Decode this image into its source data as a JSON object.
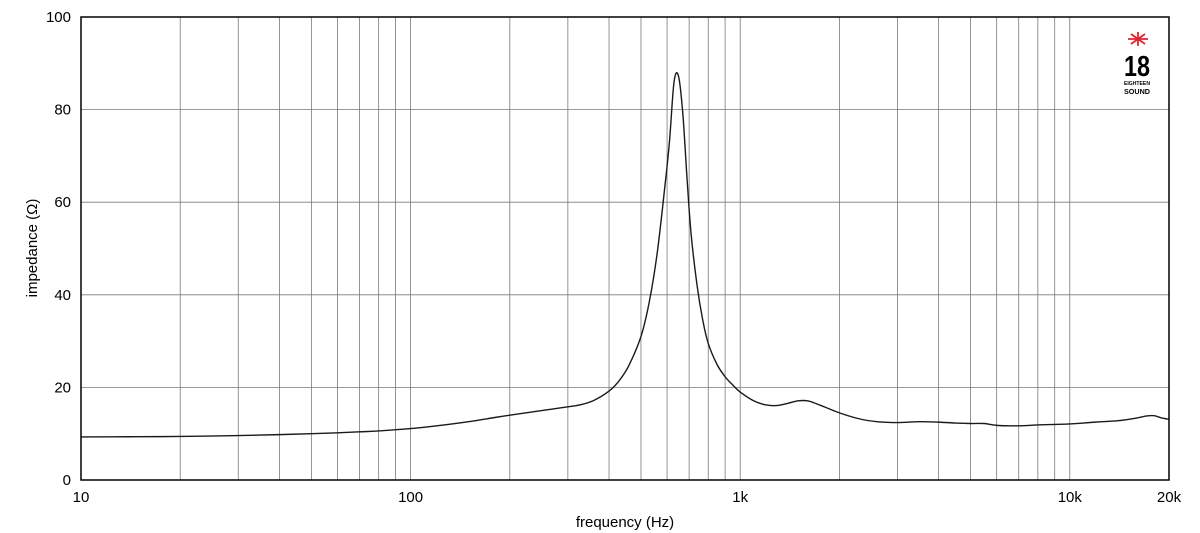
{
  "chart_data": {
    "type": "line",
    "xscale": "log",
    "xlim": [
      10,
      20000
    ],
    "ylim": [
      0,
      100
    ],
    "xlabel": "frequency (Hz)",
    "ylabel": "impedance (Ω)",
    "grid": true,
    "x_tick_labels": [
      {
        "value": 10,
        "label": "10"
      },
      {
        "value": 100,
        "label": "100"
      },
      {
        "value": 1000,
        "label": "1k"
      },
      {
        "value": 10000,
        "label": "10k"
      },
      {
        "value": 20000,
        "label": "20k"
      }
    ],
    "y_tick_labels": [
      {
        "value": 0,
        "label": "0"
      },
      {
        "value": 20,
        "label": "20"
      },
      {
        "value": 40,
        "label": "40"
      },
      {
        "value": 60,
        "label": "60"
      },
      {
        "value": 80,
        "label": "80"
      },
      {
        "value": 100,
        "label": "100"
      }
    ],
    "x_gridlines": [
      20,
      30,
      40,
      50,
      60,
      70,
      80,
      90,
      100,
      200,
      300,
      400,
      500,
      600,
      700,
      800,
      900,
      1000,
      2000,
      3000,
      4000,
      5000,
      6000,
      7000,
      8000,
      9000,
      10000
    ],
    "y_gridlines": [
      20,
      40,
      60,
      80
    ],
    "series": [
      {
        "color": "#1a1a1a",
        "x": [
          10,
          15,
          20,
          30,
          40,
          50,
          60,
          70,
          80,
          100,
          120,
          150,
          180,
          200,
          250,
          300,
          330,
          360,
          400,
          430,
          460,
          500,
          530,
          560,
          590,
          610,
          630,
          650,
          670,
          690,
          710,
          740,
          770,
          800,
          850,
          900,
          950,
          1000,
          1100,
          1200,
          1300,
          1400,
          1500,
          1600,
          1700,
          1800,
          2000,
          2300,
          2600,
          3000,
          3500,
          4000,
          4500,
          5000,
          5500,
          6000,
          7000,
          8000,
          9000,
          10000,
          12000,
          14000,
          16000,
          17000,
          18000,
          19000,
          20000
        ],
        "y": [
          9.3,
          9.35,
          9.4,
          9.6,
          9.8,
          10.0,
          10.2,
          10.4,
          10.6,
          11.1,
          11.7,
          12.6,
          13.5,
          14.0,
          15.0,
          15.8,
          16.3,
          17.2,
          19.2,
          21.5,
          24.8,
          31.0,
          38.5,
          49.0,
          63.0,
          73.0,
          86.0,
          87.2,
          79.0,
          65.0,
          53.0,
          42.0,
          34.5,
          29.5,
          25.0,
          22.3,
          20.5,
          19.0,
          17.1,
          16.2,
          16.1,
          16.6,
          17.1,
          17.1,
          16.5,
          15.8,
          14.5,
          13.2,
          12.6,
          12.4,
          12.6,
          12.5,
          12.3,
          12.2,
          12.2,
          11.8,
          11.7,
          11.9,
          12.0,
          12.1,
          12.5,
          12.8,
          13.4,
          13.8,
          13.9,
          13.4,
          13.1
        ]
      }
    ]
  },
  "logo": {
    "number": "18",
    "line1": "EIGHTEEN",
    "line2": "SOUND",
    "star_color": "#e8202a"
  }
}
